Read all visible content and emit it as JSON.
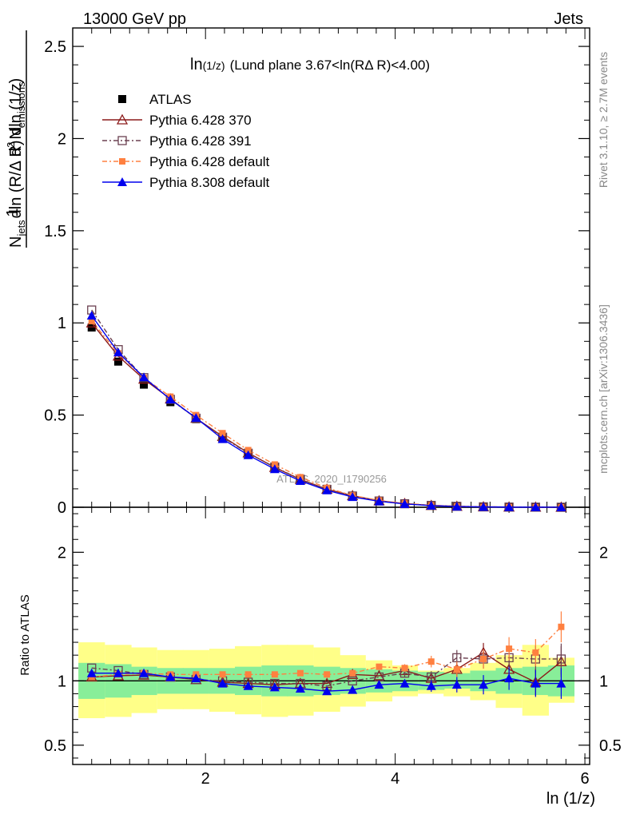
{
  "header": {
    "left": "13000 GeV pp",
    "right": "Jets"
  },
  "side_labels": {
    "rivet": "Rivet 3.1.10, ≥ 2.7M events",
    "mcplots": "mcplots.cern.ch [arXiv:1306.3436]"
  },
  "watermark": "ATLAS_2020_I1790256",
  "main_title": {
    "prefix": "ln",
    "small": "(1/z)",
    "rest": "(Lund plane 3.67<ln(RΔ R)<4.00)"
  },
  "ylabel_main": {
    "one": "1",
    "num_d2": "d",
    "num_sup": "2",
    "num_n": "N",
    "num_sub": "emissions",
    "den_n": "N",
    "den_sub": "jets",
    "den_rest": "dln (R/Δ R) dln (1/z)"
  },
  "ylabel_ratio": "Ratio to ATLAS",
  "xlabel": "ln (1/z)",
  "colors": {
    "data": "#000000",
    "py370": "#8b1a1a",
    "py391": "#6b4050",
    "py6def": "#ff8040",
    "py8def": "#0000ee",
    "band_inner": "#88ee99",
    "band_outer": "#ffff88"
  },
  "chart_data": [
    {
      "type": "line",
      "panel": "main",
      "x": [
        0.8,
        1.08,
        1.35,
        1.63,
        1.9,
        2.18,
        2.45,
        2.73,
        3.0,
        3.28,
        3.55,
        3.83,
        4.1,
        4.38,
        4.65,
        4.93,
        5.2,
        5.48,
        5.75
      ],
      "xlim": [
        0.6,
        6.05
      ],
      "ylim": [
        0,
        2.6
      ],
      "yticks": [
        0,
        0.5,
        1,
        1.5,
        2,
        2.5
      ],
      "xticks": [
        2,
        4,
        6
      ],
      "series": [
        {
          "name": "ATLAS",
          "key": "data",
          "values": [
            0.975,
            0.79,
            0.665,
            0.57,
            0.478,
            0.38,
            0.295,
            0.22,
            0.153,
            0.1,
            0.06,
            0.033,
            0.018,
            0.009,
            0.004,
            0.002,
            0.001,
            0.0005,
            0.0002
          ]
        },
        {
          "name": "Pythia 6.428 370",
          "key": "py370",
          "values": [
            1.0,
            0.82,
            0.695,
            0.588,
            0.483,
            0.384,
            0.295,
            0.216,
            0.151,
            0.098,
            0.063,
            0.035,
            0.02,
            0.01,
            0.005,
            0.0025,
            0.001,
            0.0005,
            0.0002
          ]
        },
        {
          "name": "Pythia 6.428 391",
          "key": "py391",
          "values": [
            1.07,
            0.855,
            0.703,
            0.585,
            0.483,
            0.38,
            0.293,
            0.218,
            0.152,
            0.097,
            0.061,
            0.034,
            0.019,
            0.01,
            0.005,
            0.0024,
            0.001,
            0.0005,
            0.0002
          ]
        },
        {
          "name": "Pythia 6.428 default",
          "key": "py6def",
          "values": [
            1.01,
            0.835,
            0.702,
            0.6,
            0.5,
            0.402,
            0.31,
            0.232,
            0.163,
            0.105,
            0.064,
            0.037,
            0.021,
            0.011,
            0.005,
            0.0024,
            0.0013,
            0.0006,
            0.0003
          ]
        },
        {
          "name": "Pythia 8.308 default",
          "key": "py8def",
          "values": [
            1.04,
            0.84,
            0.705,
            0.585,
            0.485,
            0.37,
            0.283,
            0.207,
            0.143,
            0.092,
            0.056,
            0.032,
            0.018,
            0.009,
            0.004,
            0.002,
            0.001,
            0.0005,
            0.0002
          ]
        }
      ]
    },
    {
      "type": "line",
      "panel": "ratio",
      "x": [
        0.8,
        1.08,
        1.35,
        1.63,
        1.9,
        2.18,
        2.45,
        2.73,
        3.0,
        3.28,
        3.55,
        3.83,
        4.1,
        4.38,
        4.65,
        4.93,
        5.2,
        5.48,
        5.75
      ],
      "xlim": [
        0.6,
        6.05
      ],
      "ylim": [
        0.35,
        2.35
      ],
      "yticks": [
        0.5,
        1,
        2
      ],
      "xticks": [
        2,
        4,
        6
      ],
      "band_inner_lo": [
        0.86,
        0.87,
        0.89,
        0.9,
        0.9,
        0.9,
        0.89,
        0.88,
        0.88,
        0.89,
        0.9,
        0.91,
        0.92,
        0.93,
        0.94,
        0.92,
        0.9,
        0.89,
        0.88
      ],
      "band_inner_hi": [
        1.14,
        1.13,
        1.11,
        1.1,
        1.1,
        1.1,
        1.11,
        1.12,
        1.12,
        1.11,
        1.1,
        1.09,
        1.08,
        1.07,
        1.06,
        1.08,
        1.1,
        1.11,
        1.12
      ],
      "band_outer_lo": [
        0.71,
        0.72,
        0.75,
        0.78,
        0.78,
        0.76,
        0.74,
        0.72,
        0.73,
        0.76,
        0.8,
        0.84,
        0.88,
        0.9,
        0.88,
        0.85,
        0.79,
        0.73,
        0.83
      ],
      "band_outer_hi": [
        1.3,
        1.28,
        1.26,
        1.24,
        1.24,
        1.25,
        1.27,
        1.28,
        1.28,
        1.26,
        1.2,
        1.16,
        1.12,
        1.08,
        1.1,
        1.14,
        1.2,
        1.28,
        1.18
      ],
      "series": [
        {
          "name": "Pythia 6.428 370",
          "key": "py370",
          "values": [
            1.03,
            1.04,
            1.045,
            1.03,
            1.01,
            0.99,
            0.98,
            0.97,
            0.98,
            0.98,
            1.05,
            1.04,
            1.08,
            1.02,
            1.09,
            1.22,
            1.09,
            0.99,
            1.15
          ]
        },
        {
          "name": "Pythia 6.428 391",
          "key": "py391",
          "values": [
            1.1,
            1.08,
            1.05,
            1.03,
            1.01,
            1.0,
            0.99,
            0.98,
            0.98,
            0.96,
            1.0,
            1.03,
            1.06,
            1.03,
            1.18,
            1.17,
            1.18,
            1.17,
            1.17
          ]
        },
        {
          "name": "Pythia 6.428 default",
          "key": "py6def",
          "values": [
            1.03,
            1.05,
            1.06,
            1.05,
            1.05,
            1.05,
            1.05,
            1.05,
            1.06,
            1.05,
            1.06,
            1.11,
            1.1,
            1.15,
            1.09,
            1.17,
            1.25,
            1.22,
            1.42
          ]
        },
        {
          "name": "Pythia 8.308 default",
          "key": "py8def",
          "values": [
            1.06,
            1.06,
            1.06,
            1.03,
            1.02,
            0.98,
            0.96,
            0.95,
            0.94,
            0.92,
            0.93,
            0.97,
            0.98,
            0.96,
            0.97,
            0.97,
            1.02,
            0.98,
            0.98
          ]
        }
      ]
    }
  ]
}
